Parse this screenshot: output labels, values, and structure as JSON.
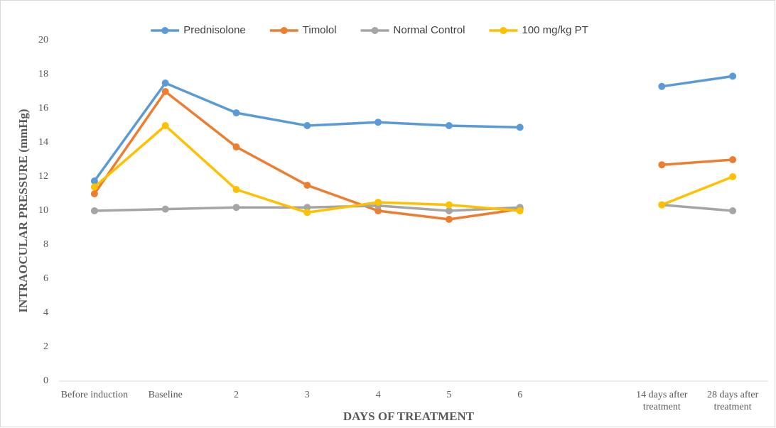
{
  "chart_data": {
    "type": "line",
    "xlabel": "DAYS OF TREATMENT",
    "ylabel": "INTRAOCULAR PRESSURE (mmHg)",
    "categories": [
      "Before induction",
      "Baseline",
      "2",
      "3",
      "4",
      "5",
      "6",
      null,
      "14 days after treatment",
      "28 days after treatment"
    ],
    "series": [
      {
        "name": "Prednisolone",
        "color": "#5b9bd5",
        "values": [
          11.75,
          17.5,
          15.75,
          15.0,
          15.2,
          15.0,
          14.9,
          null,
          17.3,
          17.9
        ]
      },
      {
        "name": "Timolol",
        "color": "#ed7d31",
        "values": [
          11.0,
          17.0,
          13.75,
          11.5,
          10.0,
          9.5,
          10.1,
          null,
          12.7,
          13.0
        ]
      },
      {
        "name": "Normal Control",
        "color": "#a5a5a5",
        "values": [
          10.0,
          10.1,
          10.2,
          10.2,
          10.3,
          10.0,
          10.2,
          null,
          10.35,
          10.0
        ]
      },
      {
        "name": "100 mg/kg PT",
        "color": "#ffc000",
        "values": [
          11.4,
          15.0,
          11.25,
          9.9,
          10.5,
          10.35,
          10.0,
          null,
          10.35,
          12.0
        ]
      }
    ],
    "ylim": [
      0,
      20
    ],
    "yticks": [
      0,
      2,
      4,
      6,
      8,
      10,
      12,
      14,
      16,
      18,
      20
    ],
    "grid": false,
    "legend": "top"
  }
}
